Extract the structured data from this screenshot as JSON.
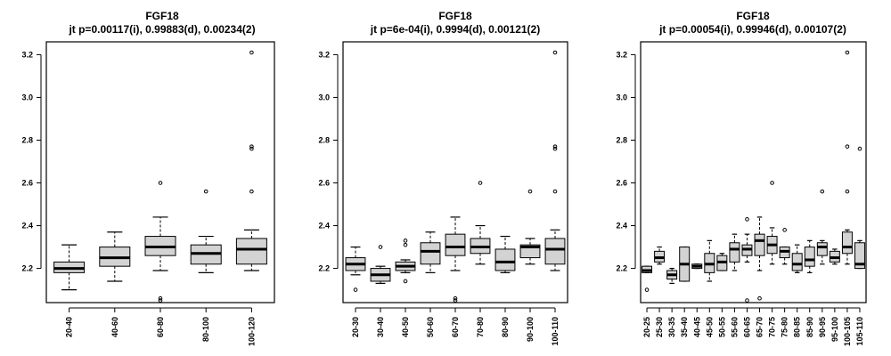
{
  "chart_data": [
    {
      "type": "box",
      "title": "FGF18",
      "subtitle": "jt p=0.00117(i), 0.99883(d), 0.00234(2)",
      "ylim": [
        2.04,
        3.26
      ],
      "yticks": [
        "2.2",
        "2.4",
        "2.6",
        "2.8",
        "3.0",
        "3.2"
      ],
      "categories": [
        "20-40",
        "40-60",
        "60-80",
        "80-100",
        "100-120"
      ],
      "boxes": [
        {
          "min": 2.1,
          "q1": 2.18,
          "median": 2.2,
          "q3": 2.23,
          "max": 2.31,
          "outliers": []
        },
        {
          "min": 2.14,
          "q1": 2.21,
          "median": 2.25,
          "q3": 2.3,
          "max": 2.37,
          "outliers": []
        },
        {
          "min": 2.19,
          "q1": 2.26,
          "median": 2.3,
          "q3": 2.35,
          "max": 2.44,
          "outliers": [
            2.6,
            2.06,
            2.05
          ]
        },
        {
          "min": 2.18,
          "q1": 2.22,
          "median": 2.27,
          "q3": 2.31,
          "max": 2.35,
          "outliers": [
            2.56
          ]
        },
        {
          "min": 2.19,
          "q1": 2.22,
          "median": 2.29,
          "q3": 2.34,
          "max": 2.38,
          "outliers": [
            3.21,
            2.77,
            2.76,
            2.56
          ]
        }
      ]
    },
    {
      "type": "box",
      "title": "FGF18",
      "subtitle": "jt p=6e-04(i), 0.9994(d), 0.00121(2)",
      "ylim": [
        2.04,
        3.26
      ],
      "yticks": [
        "2.2",
        "2.4",
        "2.6",
        "2.8",
        "3.0",
        "3.2"
      ],
      "categories": [
        "20-30",
        "30-40",
        "40-50",
        "50-60",
        "60-70",
        "70-80",
        "80-90",
        "90-100",
        "100-110"
      ],
      "boxes": [
        {
          "min": 2.17,
          "q1": 2.19,
          "median": 2.22,
          "q3": 2.25,
          "max": 2.3,
          "outliers": [
            2.1
          ]
        },
        {
          "min": 2.13,
          "q1": 2.14,
          "median": 2.17,
          "q3": 2.2,
          "max": 2.21,
          "outliers": [
            2.3
          ]
        },
        {
          "min": 2.18,
          "q1": 2.19,
          "median": 2.21,
          "q3": 2.23,
          "max": 2.24,
          "outliers": [
            2.33,
            2.31,
            2.14
          ]
        },
        {
          "min": 2.18,
          "q1": 2.22,
          "median": 2.28,
          "q3": 2.32,
          "max": 2.37,
          "outliers": []
        },
        {
          "min": 2.19,
          "q1": 2.26,
          "median": 2.3,
          "q3": 2.36,
          "max": 2.44,
          "outliers": [
            2.06,
            2.05
          ]
        },
        {
          "min": 2.22,
          "q1": 2.27,
          "median": 2.3,
          "q3": 2.34,
          "max": 2.4,
          "outliers": [
            2.6
          ]
        },
        {
          "min": 2.18,
          "q1": 2.19,
          "median": 2.23,
          "q3": 2.29,
          "max": 2.35,
          "outliers": []
        },
        {
          "min": 2.22,
          "q1": 2.25,
          "median": 2.3,
          "q3": 2.31,
          "max": 2.34,
          "outliers": [
            2.56
          ]
        },
        {
          "min": 2.19,
          "q1": 2.22,
          "median": 2.29,
          "q3": 2.34,
          "max": 2.38,
          "outliers": [
            3.21,
            2.77,
            2.76,
            2.56
          ]
        }
      ]
    },
    {
      "type": "box",
      "title": "FGF18",
      "subtitle": "jt p=0.00054(i), 0.99946(d), 0.00107(2)",
      "ylim": [
        2.04,
        3.26
      ],
      "yticks": [
        "2.2",
        "2.4",
        "2.6",
        "2.8",
        "3.0",
        "3.2"
      ],
      "categories": [
        "20-25",
        "25-30",
        "30-35",
        "35-40",
        "40-45",
        "45-50",
        "50-55",
        "55-60",
        "60-65",
        "65-70",
        "70-75",
        "75-80",
        "80-85",
        "85-90",
        "90-95",
        "95-100",
        "100-105",
        "105-110"
      ],
      "boxes": [
        {
          "min": 2.18,
          "q1": 2.18,
          "median": 2.19,
          "q3": 2.21,
          "max": 2.21,
          "outliers": [
            2.1
          ]
        },
        {
          "min": 2.22,
          "q1": 2.23,
          "median": 2.25,
          "q3": 2.28,
          "max": 2.3,
          "outliers": []
        },
        {
          "min": 2.13,
          "q1": 2.15,
          "median": 2.17,
          "q3": 2.19,
          "max": 2.2,
          "outliers": []
        },
        {
          "min": 2.14,
          "q1": 2.14,
          "median": 2.22,
          "q3": 2.3,
          "max": 2.3,
          "outliers": []
        },
        {
          "min": 2.2,
          "q1": 2.2,
          "median": 2.21,
          "q3": 2.22,
          "max": 2.22,
          "outliers": []
        },
        {
          "min": 2.14,
          "q1": 2.18,
          "median": 2.22,
          "q3": 2.27,
          "max": 2.33,
          "outliers": []
        },
        {
          "min": 2.19,
          "q1": 2.19,
          "median": 2.23,
          "q3": 2.26,
          "max": 2.27,
          "outliers": []
        },
        {
          "min": 2.19,
          "q1": 2.23,
          "median": 2.29,
          "q3": 2.32,
          "max": 2.36,
          "outliers": []
        },
        {
          "min": 2.23,
          "q1": 2.26,
          "median": 2.29,
          "q3": 2.31,
          "max": 2.36,
          "outliers": [
            2.43,
            2.05
          ]
        },
        {
          "min": 2.19,
          "q1": 2.26,
          "median": 2.33,
          "q3": 2.36,
          "max": 2.44,
          "outliers": [
            2.06
          ]
        },
        {
          "min": 2.22,
          "q1": 2.27,
          "median": 2.31,
          "q3": 2.35,
          "max": 2.39,
          "outliers": [
            2.6
          ]
        },
        {
          "min": 2.22,
          "q1": 2.25,
          "median": 2.28,
          "q3": 2.3,
          "max": 2.3,
          "outliers": [
            2.38
          ]
        },
        {
          "min": 2.18,
          "q1": 2.19,
          "median": 2.22,
          "q3": 2.27,
          "max": 2.31,
          "outliers": []
        },
        {
          "min": 2.18,
          "q1": 2.21,
          "median": 2.24,
          "q3": 2.3,
          "max": 2.33,
          "outliers": []
        },
        {
          "min": 2.22,
          "q1": 2.26,
          "median": 2.3,
          "q3": 2.32,
          "max": 2.33,
          "outliers": [
            2.56
          ]
        },
        {
          "min": 2.22,
          "q1": 2.23,
          "median": 2.25,
          "q3": 2.28,
          "max": 2.29,
          "outliers": []
        },
        {
          "min": 2.22,
          "q1": 2.27,
          "median": 2.3,
          "q3": 2.37,
          "max": 2.38,
          "outliers": [
            3.21,
            2.77,
            2.56
          ]
        },
        {
          "min": 2.2,
          "q1": 2.2,
          "median": 2.22,
          "q3": 2.32,
          "max": 2.33,
          "outliers": [
            2.76
          ]
        }
      ]
    }
  ]
}
